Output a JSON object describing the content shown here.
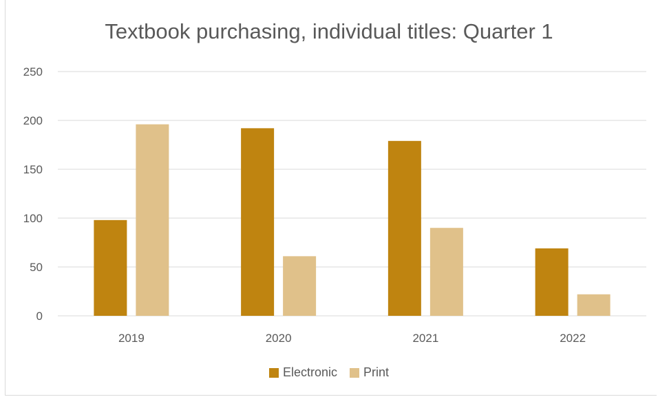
{
  "chart_data": {
    "type": "bar",
    "title": "Textbook purchasing, individual titles: Quarter 1",
    "xlabel": "",
    "ylabel": "",
    "categories": [
      "2019",
      "2020",
      "2021",
      "2022"
    ],
    "series": [
      {
        "name": "Electronic",
        "values": [
          98,
          192,
          179,
          69
        ],
        "color": "#bf8410"
      },
      {
        "name": "Print",
        "values": [
          196,
          61,
          90,
          22
        ],
        "color": "#e0c18a"
      }
    ],
    "ylim": [
      0,
      250
    ],
    "yticks": [
      "0",
      "50",
      "100",
      "150",
      "200",
      "250"
    ],
    "grid": true,
    "gridline_color": "#d9d9d9",
    "legend_position": "bottom"
  }
}
